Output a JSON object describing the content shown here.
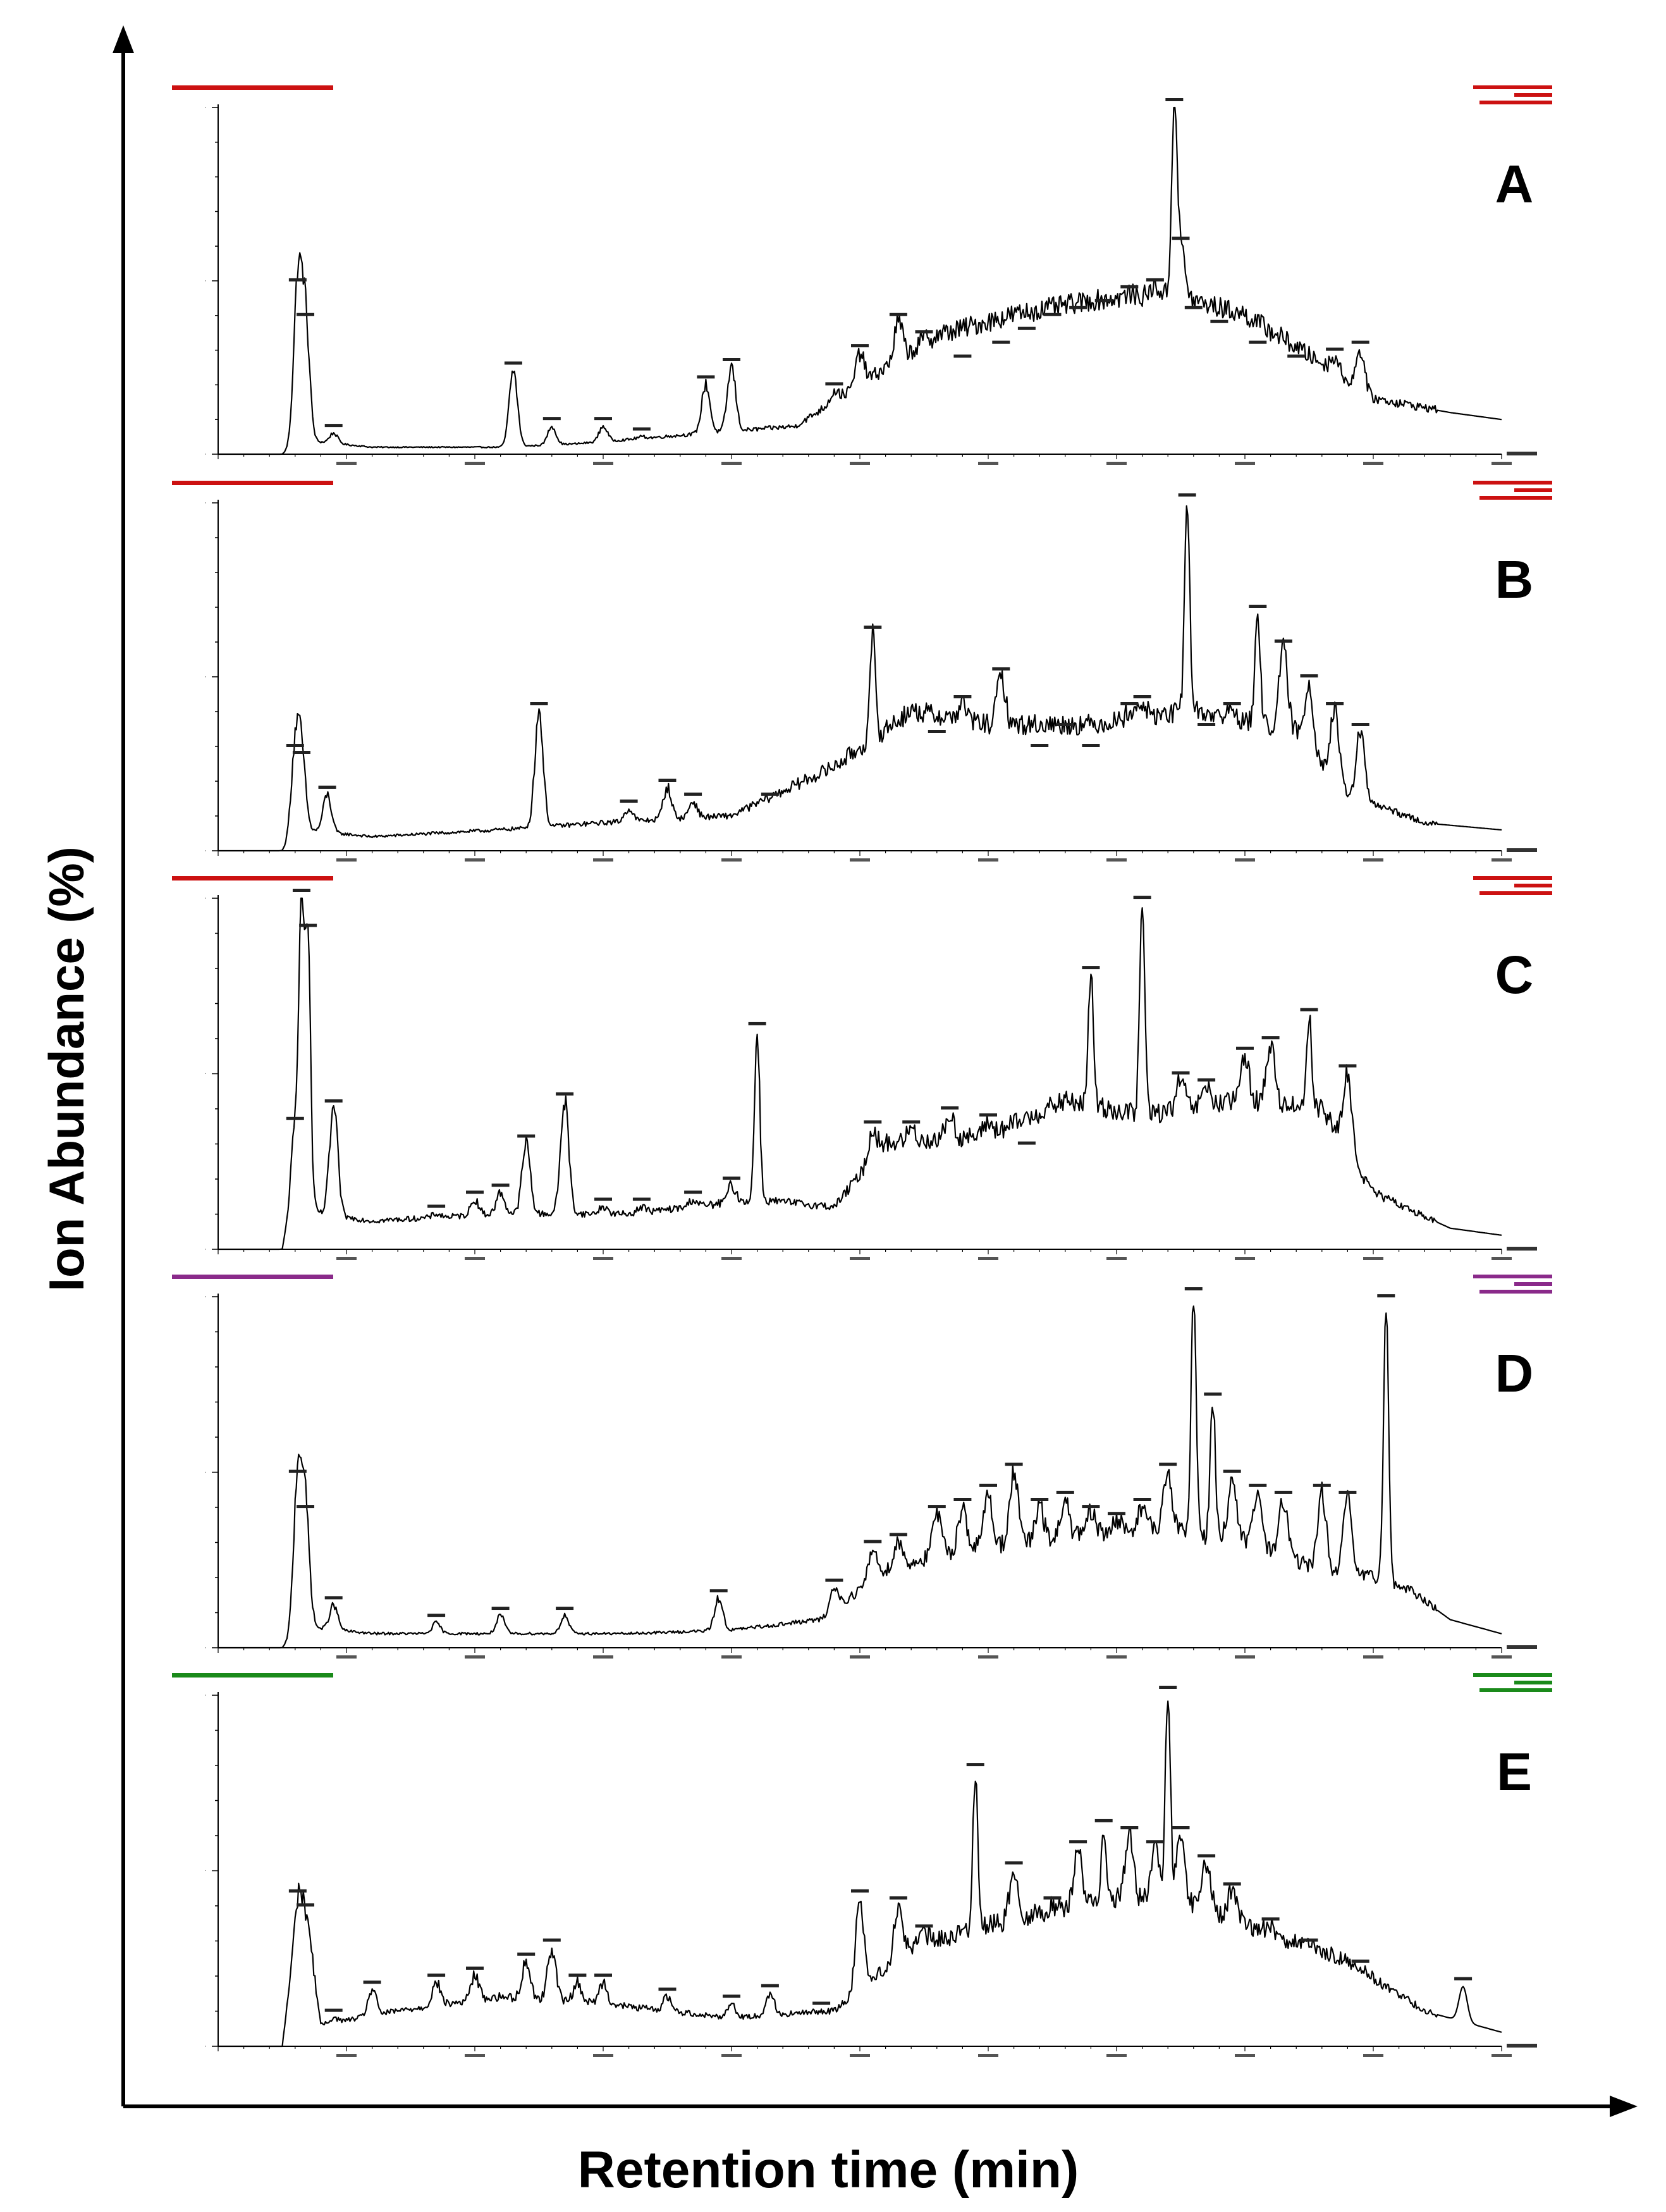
{
  "chart_data": {
    "type": "line",
    "title": "",
    "ylabel": "Ion Abundance (%)",
    "xlabel": "Retention time (min)",
    "xlim": [
      0,
      100
    ],
    "ylim": [
      0,
      100
    ],
    "panels": [
      {
        "label": "A",
        "header_color": "#cc1111",
        "peaks": [
          [
            6.2,
            48
          ],
          [
            6.8,
            38
          ],
          [
            9,
            6
          ],
          [
            23,
            24
          ],
          [
            26,
            8
          ],
          [
            30,
            8
          ],
          [
            33,
            5
          ],
          [
            38,
            20
          ],
          [
            40,
            25
          ],
          [
            48,
            18
          ],
          [
            50,
            29
          ],
          [
            53,
            38
          ],
          [
            55,
            33
          ],
          [
            58,
            26
          ],
          [
            61,
            30
          ],
          [
            63,
            34
          ],
          [
            65,
            38
          ],
          [
            67,
            40
          ],
          [
            69,
            42
          ],
          [
            71,
            46
          ],
          [
            73,
            48
          ],
          [
            74.5,
            100
          ],
          [
            75,
            60
          ],
          [
            76,
            40
          ],
          [
            78,
            36
          ],
          [
            81,
            30
          ],
          [
            84,
            26
          ],
          [
            87,
            28
          ],
          [
            89,
            30
          ]
        ],
        "background": [
          [
            0,
            0
          ],
          [
            5,
            0
          ],
          [
            6.5,
            4
          ],
          [
            12,
            2
          ],
          [
            22,
            2
          ],
          [
            28,
            3
          ],
          [
            38,
            6
          ],
          [
            45,
            8
          ],
          [
            50,
            20
          ],
          [
            56,
            34
          ],
          [
            62,
            40
          ],
          [
            68,
            44
          ],
          [
            74,
            46
          ],
          [
            80,
            40
          ],
          [
            86,
            26
          ],
          [
            90,
            16
          ],
          [
            96,
            12
          ],
          [
            100,
            10
          ]
        ]
      },
      {
        "label": "B",
        "header_color": "#cc1111",
        "peaks": [
          [
            6,
            28
          ],
          [
            6.5,
            26
          ],
          [
            8.5,
            16
          ],
          [
            25,
            40
          ],
          [
            32,
            12
          ],
          [
            35,
            18
          ],
          [
            37,
            14
          ],
          [
            43,
            14
          ],
          [
            51,
            62
          ],
          [
            56,
            32
          ],
          [
            58,
            42
          ],
          [
            61,
            50
          ],
          [
            64,
            28
          ],
          [
            66,
            34
          ],
          [
            68,
            28
          ],
          [
            71,
            40
          ],
          [
            72,
            42
          ],
          [
            75.5,
            100
          ],
          [
            77,
            34
          ],
          [
            79,
            40
          ],
          [
            81,
            68
          ],
          [
            83,
            58
          ],
          [
            85,
            48
          ],
          [
            87,
            40
          ],
          [
            89,
            34
          ]
        ],
        "background": [
          [
            0,
            0
          ],
          [
            5,
            0
          ],
          [
            6.5,
            6
          ],
          [
            12,
            4
          ],
          [
            22,
            6
          ],
          [
            30,
            8
          ],
          [
            40,
            10
          ],
          [
            48,
            24
          ],
          [
            54,
            40
          ],
          [
            60,
            36
          ],
          [
            68,
            36
          ],
          [
            76,
            40
          ],
          [
            84,
            34
          ],
          [
            88,
            16
          ],
          [
            94,
            8
          ],
          [
            100,
            6
          ]
        ]
      },
      {
        "label": "C",
        "header_color": "#cc1111",
        "peaks": [
          [
            6,
            35
          ],
          [
            6.5,
            100
          ],
          [
            7,
            90
          ],
          [
            9,
            40
          ],
          [
            17,
            10
          ],
          [
            20,
            14
          ],
          [
            22,
            16
          ],
          [
            24,
            30
          ],
          [
            27,
            42
          ],
          [
            30,
            12
          ],
          [
            33,
            12
          ],
          [
            37,
            14
          ],
          [
            40,
            18
          ],
          [
            42,
            62
          ],
          [
            51,
            34
          ],
          [
            54,
            34
          ],
          [
            57,
            38
          ],
          [
            60,
            36
          ],
          [
            63,
            28
          ],
          [
            68,
            78
          ],
          [
            72,
            98
          ],
          [
            75,
            48
          ],
          [
            77,
            46
          ],
          [
            80,
            55
          ],
          [
            82,
            58
          ],
          [
            85,
            66
          ],
          [
            88,
            50
          ]
        ],
        "background": [
          [
            0,
            0
          ],
          [
            5,
            0
          ],
          [
            6,
            18
          ],
          [
            8,
            10
          ],
          [
            12,
            8
          ],
          [
            22,
            10
          ],
          [
            32,
            10
          ],
          [
            42,
            14
          ],
          [
            48,
            12
          ],
          [
            52,
            30
          ],
          [
            60,
            32
          ],
          [
            66,
            42
          ],
          [
            72,
            38
          ],
          [
            80,
            42
          ],
          [
            86,
            40
          ],
          [
            90,
            16
          ],
          [
            96,
            6
          ],
          [
            100,
            4
          ]
        ]
      },
      {
        "label": "D",
        "header_color": "#8a2a8a",
        "peaks": [
          [
            6.2,
            48
          ],
          [
            6.8,
            38
          ],
          [
            9,
            12
          ],
          [
            17,
            7
          ],
          [
            22,
            9
          ],
          [
            27,
            9
          ],
          [
            39,
            14
          ],
          [
            48,
            17
          ],
          [
            51,
            28
          ],
          [
            53,
            30
          ],
          [
            56,
            38
          ],
          [
            58,
            40
          ],
          [
            60,
            44
          ],
          [
            62,
            50
          ],
          [
            64,
            40
          ],
          [
            66,
            42
          ],
          [
            68,
            38
          ],
          [
            70,
            36
          ],
          [
            72,
            40
          ],
          [
            74,
            50
          ],
          [
            76,
            100
          ],
          [
            77.5,
            70
          ],
          [
            79,
            48
          ],
          [
            81,
            44
          ],
          [
            83,
            42
          ],
          [
            86,
            44
          ],
          [
            88,
            42
          ],
          [
            91,
            98
          ]
        ],
        "background": [
          [
            0,
            0
          ],
          [
            5,
            0
          ],
          [
            6.5,
            6
          ],
          [
            12,
            4
          ],
          [
            22,
            4
          ],
          [
            32,
            4
          ],
          [
            40,
            5
          ],
          [
            47,
            8
          ],
          [
            52,
            22
          ],
          [
            58,
            28
          ],
          [
            64,
            30
          ],
          [
            72,
            34
          ],
          [
            80,
            30
          ],
          [
            86,
            22
          ],
          [
            90,
            20
          ],
          [
            93,
            16
          ],
          [
            96,
            8
          ],
          [
            100,
            4
          ]
        ]
      },
      {
        "label": "E",
        "header_color": "#1a8a1a",
        "peaks": [
          [
            6.2,
            42
          ],
          [
            6.8,
            38
          ],
          [
            9,
            8
          ],
          [
            12,
            16
          ],
          [
            17,
            18
          ],
          [
            20,
            20
          ],
          [
            24,
            24
          ],
          [
            26,
            28
          ],
          [
            28,
            18
          ],
          [
            30,
            18
          ],
          [
            35,
            14
          ],
          [
            40,
            12
          ],
          [
            43,
            15
          ],
          [
            47,
            10
          ],
          [
            50,
            42
          ],
          [
            53,
            40
          ],
          [
            55,
            32
          ],
          [
            59,
            78
          ],
          [
            62,
            50
          ],
          [
            65,
            40
          ],
          [
            67,
            56
          ],
          [
            69,
            62
          ],
          [
            71,
            60
          ],
          [
            73,
            56
          ],
          [
            74,
            100
          ],
          [
            75,
            60
          ],
          [
            77,
            52
          ],
          [
            79,
            44
          ],
          [
            82,
            34
          ],
          [
            85,
            28
          ],
          [
            89,
            22
          ],
          [
            97,
            17
          ]
        ],
        "background": [
          [
            0,
            0
          ],
          [
            5,
            0
          ],
          [
            6.3,
            40
          ],
          [
            7,
            34
          ],
          [
            8,
            6
          ],
          [
            14,
            10
          ],
          [
            22,
            14
          ],
          [
            30,
            12
          ],
          [
            40,
            8
          ],
          [
            48,
            10
          ],
          [
            54,
            28
          ],
          [
            62,
            36
          ],
          [
            70,
            42
          ],
          [
            76,
            40
          ],
          [
            82,
            32
          ],
          [
            88,
            24
          ],
          [
            94,
            10
          ],
          [
            98,
            6
          ],
          [
            100,
            4
          ]
        ]
      }
    ]
  }
}
